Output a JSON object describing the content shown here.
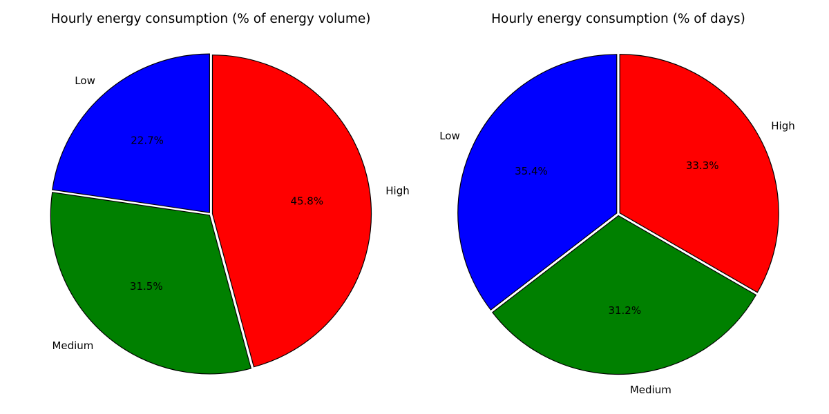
{
  "chart_data": [
    {
      "type": "pie",
      "title": "Hourly energy consumption (% of energy volume)",
      "slices": [
        {
          "label": "High",
          "value": 45.8,
          "pct_label": "45.8%",
          "color": "#ff0000"
        },
        {
          "label": "Medium",
          "value": 31.5,
          "pct_label": "31.5%",
          "color": "#008000"
        },
        {
          "label": "Low",
          "value": 22.7,
          "pct_label": "22.7%",
          "color": "#0000ff"
        }
      ]
    },
    {
      "type": "pie",
      "title": "Hourly energy consumption (% of days)",
      "slices": [
        {
          "label": "High",
          "value": 33.3,
          "pct_label": "33.3%",
          "color": "#ff0000"
        },
        {
          "label": "Medium",
          "value": 31.2,
          "pct_label": "31.2%",
          "color": "#008000"
        },
        {
          "label": "Low",
          "value": 35.4,
          "pct_label": "35.4%",
          "color": "#0000ff"
        }
      ]
    }
  ]
}
